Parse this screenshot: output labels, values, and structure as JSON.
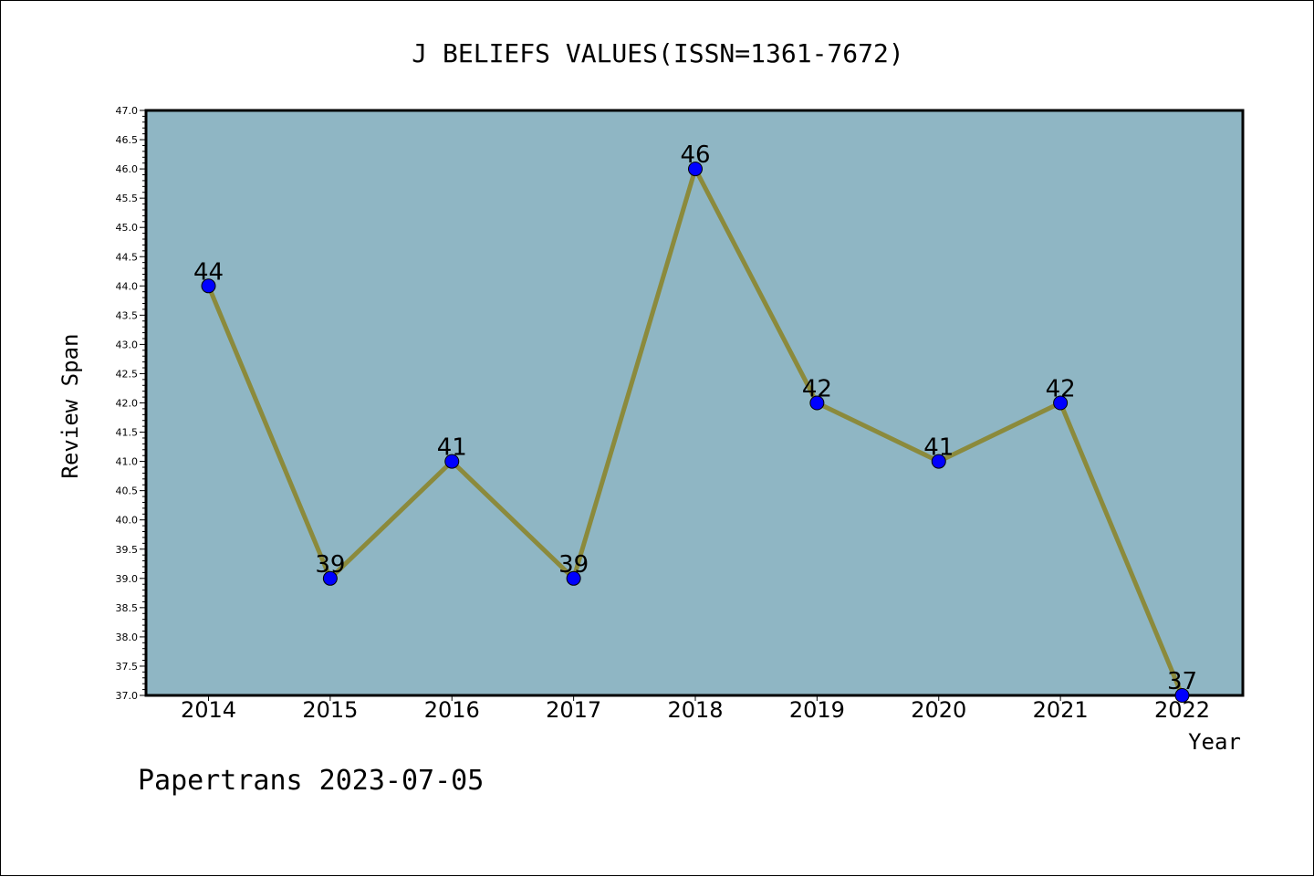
{
  "chart_data": {
    "type": "line",
    "title": "J BELIEFS VALUES(ISSN=1361-7672)",
    "xlabel": "Year",
    "ylabel": "Review Span",
    "footer": "Papertrans 2023-07-05",
    "categories": [
      "2014",
      "2015",
      "2016",
      "2017",
      "2018",
      "2019",
      "2020",
      "2021",
      "2022"
    ],
    "series": [
      {
        "values": [
          44,
          39,
          41,
          39,
          46,
          42,
          41,
          42,
          37
        ]
      }
    ],
    "ylim": [
      37.0,
      47.0
    ],
    "ytick_step": 0.5,
    "grid": false,
    "colors": {
      "plot_background": "#8fb6c4",
      "line": "#8b8a3c",
      "marker": "#0000ff",
      "axis": "#000000"
    }
  }
}
